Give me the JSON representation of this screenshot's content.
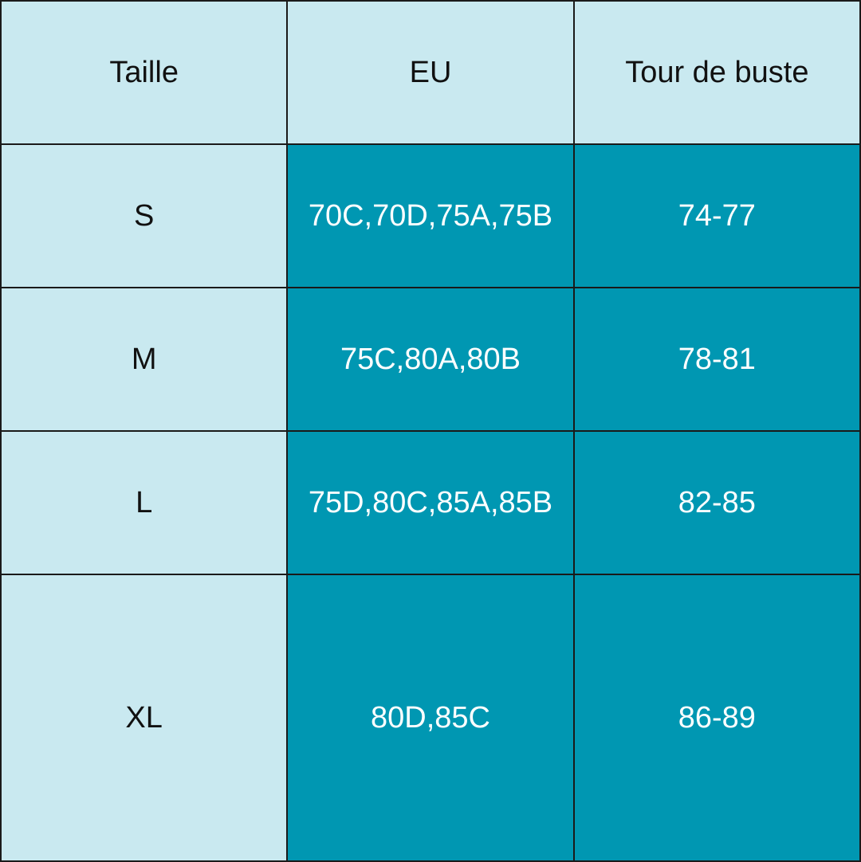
{
  "table": {
    "headers": [
      "Taille",
      "EU",
      "Tour de buste"
    ],
    "rows": [
      [
        "S",
        "70C,70D,75A,75B",
        "74-77"
      ],
      [
        "M",
        "75C,80A,80B",
        "78-81"
      ],
      [
        "L",
        "75D,80C,85A,85B",
        "82-85"
      ],
      [
        "XL",
        "80D,85C",
        "86-89"
      ]
    ]
  },
  "colors": {
    "light_cell": "#c9e9f0",
    "dark_cell": "#0097b2",
    "border": "#1a1a1a"
  }
}
